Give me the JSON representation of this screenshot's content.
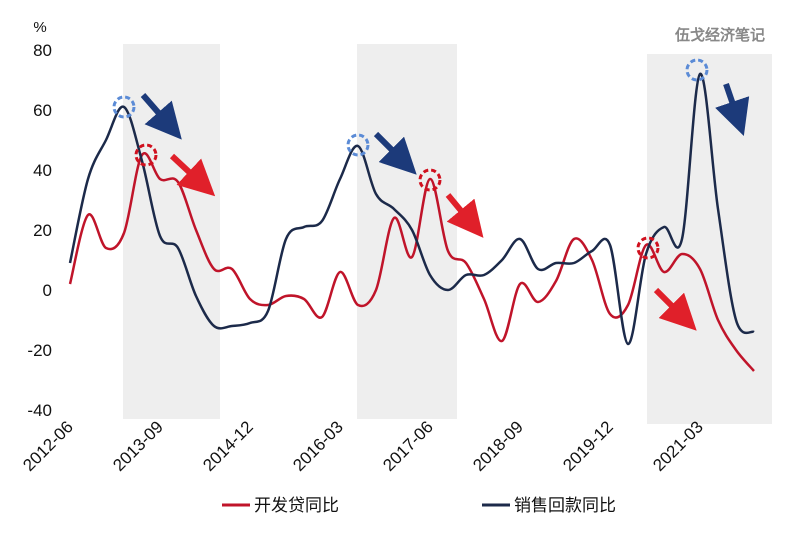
{
  "chart_data": {
    "type": "line",
    "unit": "%",
    "watermark": "伍戈经济笔记",
    "categories": [
      "2012-06",
      null,
      null,
      null,
      null,
      "2013-09",
      null,
      null,
      null,
      null,
      "2014-12",
      null,
      null,
      null,
      null,
      "2016-03",
      null,
      null,
      null,
      null,
      "2017-06",
      null,
      null,
      null,
      null,
      "2018-09",
      null,
      null,
      null,
      null,
      "2019-12",
      null,
      null,
      null,
      null,
      "2021-03",
      null,
      null,
      null
    ],
    "series": [
      {
        "name": "开发贷同比",
        "color": "#c0142a",
        "values": [
          2,
          25,
          14,
          19,
          45,
          37,
          36,
          20,
          7,
          7,
          -3,
          -5,
          -2,
          -3,
          -9,
          6,
          -5,
          0,
          24,
          11,
          37,
          13,
          9,
          -3,
          -17,
          2,
          -4,
          3,
          17,
          10,
          -8,
          -5,
          15,
          6,
          12,
          7,
          -10,
          -20,
          -27
        ]
      },
      {
        "name": "销售回款同比",
        "color": "#1c2a4a",
        "values": [
          9,
          37,
          50,
          61,
          43,
          18,
          14,
          -2,
          -12,
          -12,
          -11,
          -7,
          17,
          21,
          23,
          37,
          48,
          32,
          27,
          20,
          5,
          0,
          5,
          5,
          10,
          17,
          7,
          9,
          9,
          13,
          15,
          -18,
          12,
          21,
          17,
          72,
          27,
          -10,
          -14
        ]
      }
    ],
    "ylim": [
      -40,
      80
    ],
    "yticks": [
      -40,
      -20,
      0,
      20,
      40,
      60,
      80
    ]
  }
}
